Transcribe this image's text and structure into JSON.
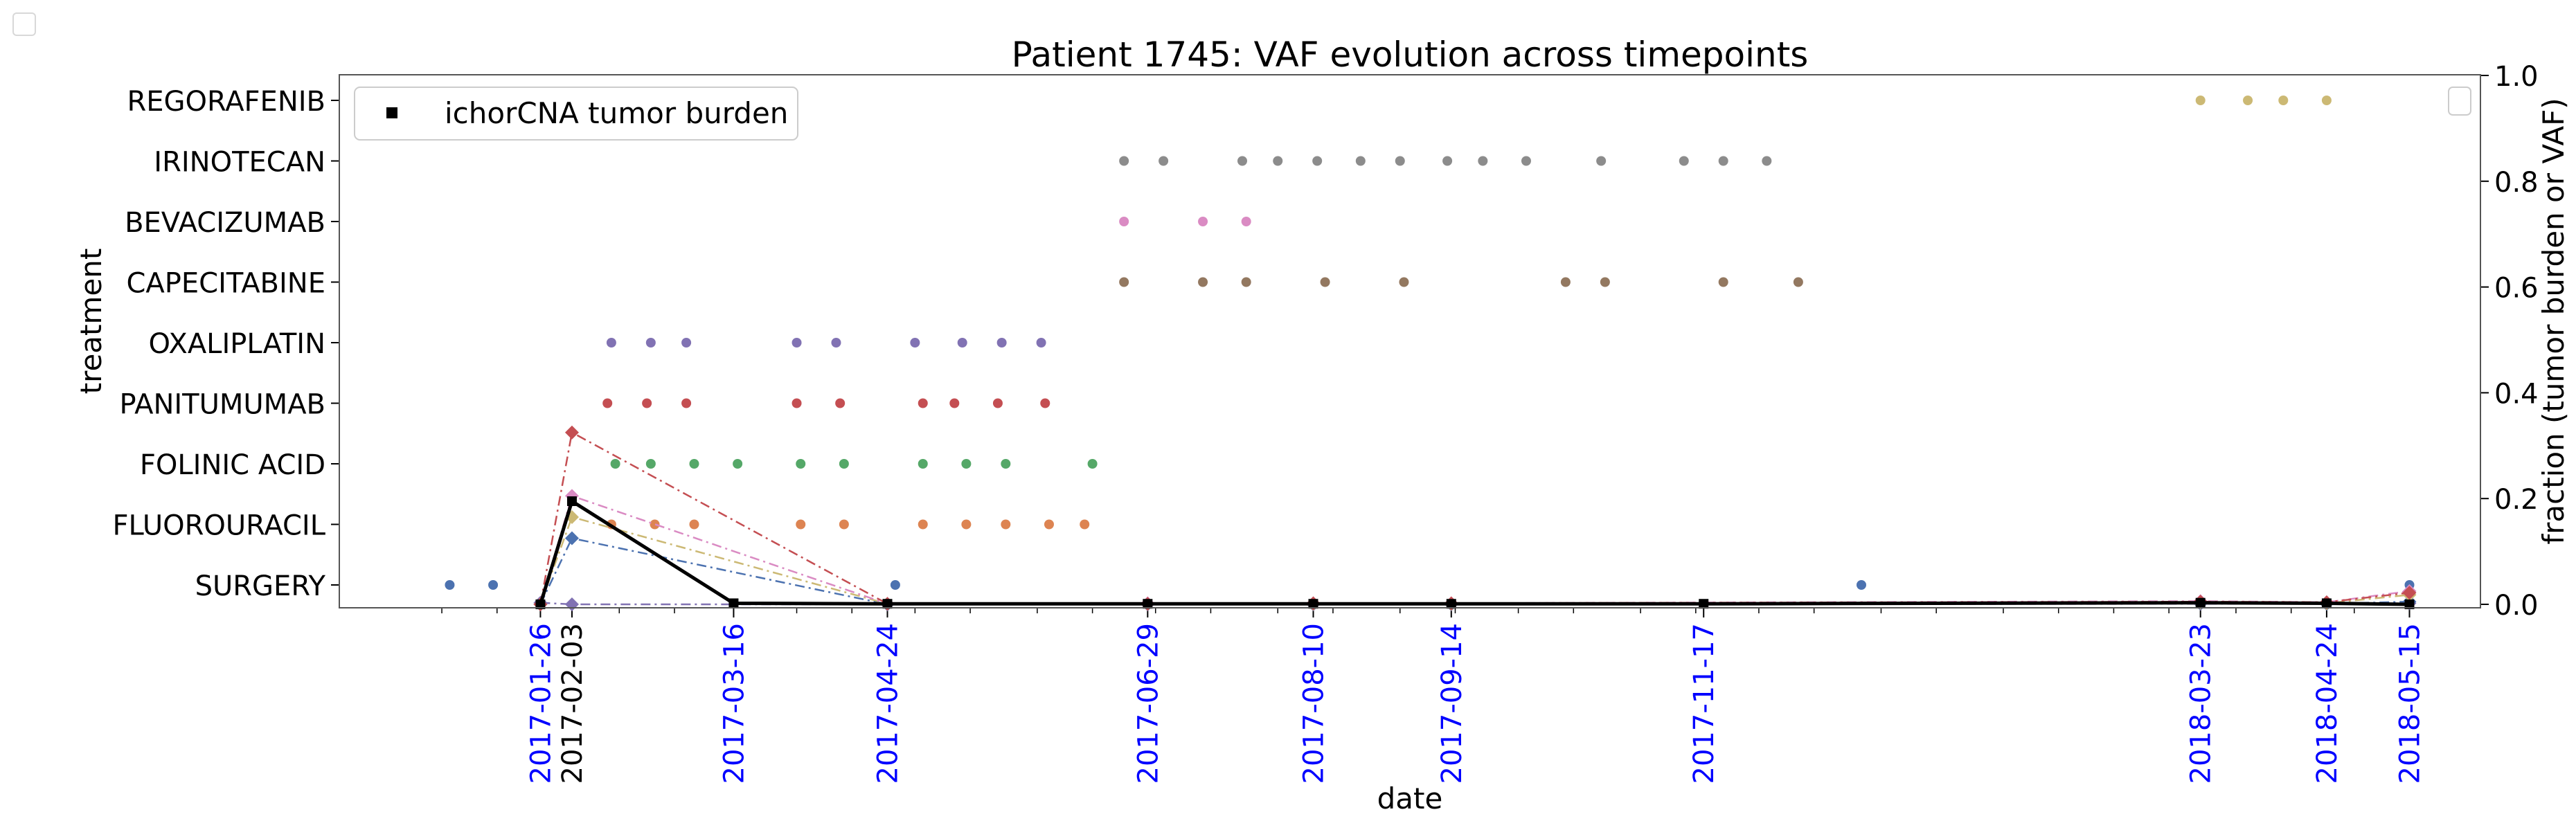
{
  "chart_data": {
    "type": "scatter",
    "title": "Patient 1745: VAF evolution across timepoints",
    "xlabel": "date",
    "ylabel_left": "treatment",
    "ylabel_right": "fraction (tumor burden or VAF)",
    "xlim": [
      "2016-12-06",
      "2018-06-02"
    ],
    "ylim_right": [
      0.0,
      1.0
    ],
    "right_ticks": [
      "0.0",
      "0.2",
      "0.4",
      "0.6",
      "0.8",
      "1.0"
    ],
    "legend": {
      "placement": "top-left",
      "entries": [
        "ichorCNA tumor burden"
      ]
    },
    "second_legend": {
      "placement": "top-right",
      "entries": []
    },
    "treatments": [
      "SURGERY",
      "FLUOROURACIL",
      "FOLINIC ACID",
      "PANITUMUMAB",
      "OXALIPLATIN",
      "CAPECITABINE",
      "BEVACIZUMAB",
      "IRINOTECAN",
      "REGORAFENIB"
    ],
    "timepoint_ticks": [
      {
        "date": "2017-01-26",
        "color": "#0000ff"
      },
      {
        "date": "2017-02-03",
        "color": "#000000"
      },
      {
        "date": "2017-03-16",
        "color": "#0000ff"
      },
      {
        "date": "2017-04-24",
        "color": "#0000ff"
      },
      {
        "date": "2017-06-29",
        "color": "#0000ff"
      },
      {
        "date": "2017-08-10",
        "color": "#0000ff"
      },
      {
        "date": "2017-09-14",
        "color": "#0000ff"
      },
      {
        "date": "2017-11-17",
        "color": "#0000ff"
      },
      {
        "date": "2018-03-23",
        "color": "#0000ff"
      },
      {
        "date": "2018-04-24",
        "color": "#0000ff"
      },
      {
        "date": "2018-05-15",
        "color": "#0000ff"
      }
    ],
    "minor_ticks": [
      "2017-01-01",
      "2017-01-15",
      "2017-02-15",
      "2017-03-01",
      "2017-04-01",
      "2017-04-15",
      "2017-05-01",
      "2017-05-15",
      "2017-06-01",
      "2017-06-15",
      "2017-07-01",
      "2017-07-15",
      "2017-08-01",
      "2017-08-15",
      "2017-09-01",
      "2017-09-15",
      "2017-10-01",
      "2017-10-15",
      "2017-11-01",
      "2017-11-15",
      "2017-12-01",
      "2017-12-15",
      "2018-01-01",
      "2018-01-15",
      "2018-02-01",
      "2018-02-15",
      "2018-03-01",
      "2018-03-15",
      "2018-04-01",
      "2018-04-15",
      "2018-05-01"
    ],
    "treatment_events": [
      {
        "treatment": "SURGERY",
        "color": "#4c72b0",
        "dates": [
          "2017-01-03",
          "2017-01-14",
          "2017-04-26",
          "2017-12-27",
          "2018-05-15"
        ]
      },
      {
        "treatment": "FLUOROURACIL",
        "color": "#dd8452",
        "dates": [
          "2017-02-13",
          "2017-02-24",
          "2017-03-06",
          "2017-04-02",
          "2017-04-13",
          "2017-05-03",
          "2017-05-14",
          "2017-05-24",
          "2017-06-04",
          "2017-06-13"
        ]
      },
      {
        "treatment": "FOLINIC ACID",
        "color": "#55a868",
        "dates": [
          "2017-02-14",
          "2017-02-23",
          "2017-03-06",
          "2017-03-17",
          "2017-04-02",
          "2017-04-13",
          "2017-05-03",
          "2017-05-14",
          "2017-05-24",
          "2017-06-15"
        ]
      },
      {
        "treatment": "PANITUMUMAB",
        "color": "#c44e52",
        "dates": [
          "2017-02-12",
          "2017-02-22",
          "2017-03-04",
          "2017-04-01",
          "2017-04-12",
          "2017-05-03",
          "2017-05-11",
          "2017-05-22",
          "2017-06-03"
        ]
      },
      {
        "treatment": "OXALIPLATIN",
        "color": "#8172b3",
        "dates": [
          "2017-02-13",
          "2017-02-23",
          "2017-03-04",
          "2017-04-01",
          "2017-04-11",
          "2017-05-01",
          "2017-05-13",
          "2017-05-23",
          "2017-06-02"
        ]
      },
      {
        "treatment": "CAPECITABINE",
        "color": "#937860",
        "dates": [
          "2017-06-23",
          "2017-07-13",
          "2017-07-24",
          "2017-08-13",
          "2017-09-02",
          "2017-10-13",
          "2017-10-23",
          "2017-11-22",
          "2017-12-11"
        ]
      },
      {
        "treatment": "BEVACIZUMAB",
        "color": "#da8bc3",
        "dates": [
          "2017-06-23",
          "2017-07-13",
          "2017-07-24"
        ]
      },
      {
        "treatment": "IRINOTECAN",
        "color": "#8c8c8c",
        "dates": [
          "2017-06-23",
          "2017-07-03",
          "2017-07-23",
          "2017-08-01",
          "2017-08-11",
          "2017-08-22",
          "2017-09-01",
          "2017-09-13",
          "2017-09-22",
          "2017-10-03",
          "2017-10-22",
          "2017-11-12",
          "2017-11-22",
          "2017-12-03"
        ]
      },
      {
        "treatment": "REGORAFENIB",
        "color": "#ccb974",
        "dates": [
          "2018-03-23",
          "2018-04-04",
          "2018-04-13",
          "2018-04-24"
        ]
      }
    ],
    "series": [
      {
        "name": "ichorCNA tumor burden",
        "color": "#000000",
        "marker": "square",
        "style": "solid",
        "x": [
          "2017-01-26",
          "2017-02-03",
          "2017-03-16",
          "2017-04-24",
          "2017-06-29",
          "2017-08-10",
          "2017-09-14",
          "2017-11-17",
          "2018-03-23",
          "2018-04-24",
          "2018-05-15"
        ],
        "y": [
          0.0,
          0.195,
          0.002,
          0.001,
          0.001,
          0.001,
          0.001,
          0.001,
          0.003,
          0.002,
          0.0
        ]
      },
      {
        "color": "#c44e52",
        "marker": "diamond",
        "style": "dashdot",
        "x": [
          "2017-01-26",
          "2017-02-03",
          "2017-04-24",
          "2017-06-29",
          "2017-08-10",
          "2017-09-14",
          "2018-03-23",
          "2018-04-24",
          "2018-05-15"
        ],
        "y": [
          0.0,
          0.325,
          0.001,
          0.001,
          0.002,
          0.002,
          0.005,
          0.004,
          0.022
        ]
      },
      {
        "color": "#da8bc3",
        "marker": "diamond",
        "style": "dashdot",
        "x": [
          "2017-01-26",
          "2017-02-03",
          "2017-04-24",
          "2017-06-29",
          "2017-08-10",
          "2017-09-14",
          "2018-03-23",
          "2018-04-24",
          "2018-05-15"
        ],
        "y": [
          0.0,
          0.205,
          0.001,
          0.002,
          0.002,
          0.002,
          0.006,
          0.004,
          0.025
        ]
      },
      {
        "color": "#ccb974",
        "marker": "diamond",
        "style": "dashdot",
        "x": [
          "2017-01-26",
          "2017-02-03",
          "2017-04-24",
          "2017-06-29",
          "2017-08-10",
          "2017-09-14",
          "2018-03-23",
          "2018-04-24",
          "2018-05-15"
        ],
        "y": [
          0.0,
          0.165,
          0.001,
          0.001,
          0.001,
          0.001,
          0.003,
          0.002,
          0.018
        ]
      },
      {
        "color": "#4c72b0",
        "marker": "diamond",
        "style": "dashdot",
        "x": [
          "2017-01-26",
          "2017-02-03",
          "2017-04-24",
          "2017-06-29",
          "2017-08-10",
          "2017-09-14",
          "2018-03-23",
          "2018-04-24",
          "2018-05-15"
        ],
        "y": [
          0.0,
          0.125,
          0.0,
          0.001,
          0.001,
          0.001,
          0.002,
          0.001,
          0.005
        ]
      },
      {
        "color": "#8172b3",
        "marker": "diamond",
        "style": "dashdot",
        "x": [
          "2017-01-26",
          "2017-02-03",
          "2017-04-24",
          "2017-06-29",
          "2017-08-10",
          "2017-09-14",
          "2018-03-23",
          "2018-04-24",
          "2018-05-15"
        ],
        "y": [
          0.003,
          0.0,
          0.0,
          0.0,
          0.0,
          0.0,
          0.001,
          0.001,
          0.002
        ]
      }
    ]
  }
}
